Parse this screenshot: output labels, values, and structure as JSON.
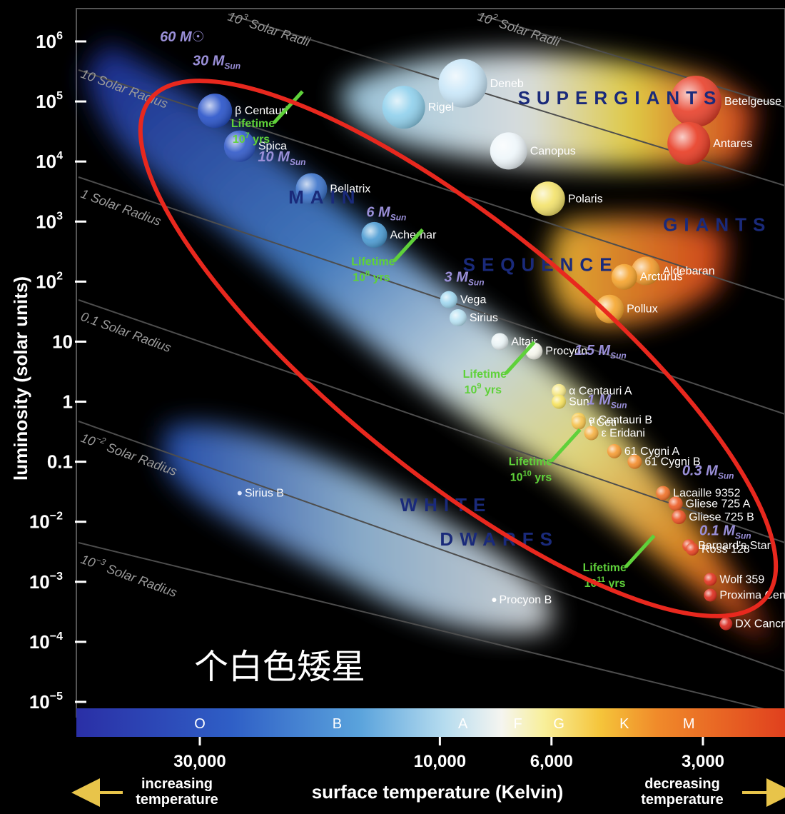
{
  "chart_data": {
    "type": "scatter",
    "xlabel": "surface temperature (Kelvin)",
    "ylabel": "luminosity (solar units)",
    "x_note_left": "increasing temperature",
    "x_note_right": "decreasing temperature",
    "x_scale": "log, reversed",
    "y_scale": "log",
    "xlim": [
      40000,
      2400
    ],
    "ylim": [
      6e-06,
      1500000
    ],
    "x_ticks": [
      {
        "value": 30000,
        "label": "30,000"
      },
      {
        "value": 10000,
        "label": "10,000"
      },
      {
        "value": 6000,
        "label": "6,000"
      },
      {
        "value": 3000,
        "label": "3,000"
      }
    ],
    "y_ticks": [
      {
        "value": 1000000,
        "base": "10",
        "exp": "6"
      },
      {
        "value": 100000,
        "base": "10",
        "exp": "5"
      },
      {
        "value": 10000,
        "base": "10",
        "exp": "4"
      },
      {
        "value": 1000,
        "base": "10",
        "exp": "3"
      },
      {
        "value": 100,
        "base": "10",
        "exp": "2"
      },
      {
        "value": 10,
        "base": "10",
        "exp": ""
      },
      {
        "value": 1,
        "base": "1",
        "exp": ""
      },
      {
        "value": 0.1,
        "base": "0.1",
        "exp": ""
      },
      {
        "value": 0.01,
        "base": "10",
        "exp": "−2"
      },
      {
        "value": 0.001,
        "base": "10",
        "exp": "−3"
      },
      {
        "value": 0.0001,
        "base": "10",
        "exp": "−4"
      },
      {
        "value": 1e-05,
        "base": "10",
        "exp": "−5"
      }
    ],
    "spectral_classes": [
      {
        "label": "O",
        "temp": 30000
      },
      {
        "label": "B",
        "temp": 16000
      },
      {
        "label": "A",
        "temp": 9000
      },
      {
        "label": "F",
        "temp": 7000
      },
      {
        "label": "G",
        "temp": 5800
      },
      {
        "label": "K",
        "temp": 4300
      },
      {
        "label": "M",
        "temp": 3200
      }
    ],
    "regions": [
      {
        "label": "MAIN",
        "x": 20000,
        "y": 2000
      },
      {
        "label": "SEQUENCE",
        "x": 9000,
        "y": 150
      },
      {
        "label": "SUPERGIANTS",
        "x": 7000,
        "y": 90000
      },
      {
        "label": "GIANTS",
        "x": 3600,
        "y": 700
      },
      {
        "label": "WHITE",
        "x": 12000,
        "y": 0.015
      },
      {
        "label": "DWARFS",
        "x": 10000,
        "y": 0.004
      }
    ],
    "stars": [
      {
        "name": "Deneb",
        "temp": 9000,
        "lum": 200000,
        "size": 34,
        "color": "#c8e6f8"
      },
      {
        "name": "Rigel",
        "temp": 11800,
        "lum": 80000,
        "size": 30,
        "color": "#8fd0ec"
      },
      {
        "name": "Betelgeuse",
        "temp": 3100,
        "lum": 100000,
        "size": 36,
        "color": "#e8402a"
      },
      {
        "name": "Antares",
        "temp": 3200,
        "lum": 20000,
        "size": 30,
        "color": "#e83a22"
      },
      {
        "name": "Canopus",
        "temp": 7300,
        "lum": 15000,
        "size": 26,
        "color": "#eef6fa"
      },
      {
        "name": "Polaris",
        "temp": 6100,
        "lum": 2400,
        "size": 24,
        "color": "#f3e26a"
      },
      {
        "name": "Aldebaran",
        "temp": 3900,
        "lum": 150,
        "size": 20,
        "color": "#f29a2a"
      },
      {
        "name": "Arcturus",
        "temp": 4300,
        "lum": 120,
        "size": 18,
        "color": "#f5a22a"
      },
      {
        "name": "Pollux",
        "temp": 4600,
        "lum": 35,
        "size": 20,
        "color": "#f5a52c"
      },
      {
        "name": "β Centauri",
        "temp": 28000,
        "lum": 70000,
        "size": 24,
        "color": "#2752c9"
      },
      {
        "name": "Spica",
        "temp": 25000,
        "lum": 18000,
        "size": 22,
        "color": "#2f58c8"
      },
      {
        "name": "Bellatrix",
        "temp": 18000,
        "lum": 3500,
        "size": 22,
        "color": "#3a72c9"
      },
      {
        "name": "Achernar",
        "temp": 13500,
        "lum": 600,
        "size": 18,
        "color": "#4a9ad2"
      },
      {
        "name": "Vega",
        "temp": 9600,
        "lum": 50,
        "size": 12,
        "color": "#9ed6ef"
      },
      {
        "name": "Sirius",
        "temp": 9200,
        "lum": 25,
        "size": 12,
        "color": "#b7e2f3"
      },
      {
        "name": "Procyon",
        "temp": 6500,
        "lum": 7,
        "size": 12,
        "color": "#f4f4ea"
      },
      {
        "name": "Altair",
        "temp": 7600,
        "lum": 10,
        "size": 12,
        "color": "#e8f2f4"
      },
      {
        "name": "α Centauri A",
        "temp": 5800,
        "lum": 1.5,
        "size": 10,
        "color": "#f6e886"
      },
      {
        "name": "Sun",
        "temp": 5800,
        "lum": 1,
        "size": 10,
        "color": "#f6e25c"
      },
      {
        "name": "α Centauri B",
        "temp": 5300,
        "lum": 0.5,
        "size": 10,
        "color": "#f7cc4e"
      },
      {
        "name": "τ Ceti",
        "temp": 5300,
        "lum": 0.45,
        "size": 10,
        "color": "#f5c14a"
      },
      {
        "name": "ε Eridani",
        "temp": 5000,
        "lum": 0.3,
        "size": 10,
        "color": "#f5b040"
      },
      {
        "name": "61 Cygni A",
        "temp": 4500,
        "lum": 0.15,
        "size": 10,
        "color": "#f59a30"
      },
      {
        "name": "61 Cygni B",
        "temp": 4100,
        "lum": 0.1,
        "size": 10,
        "color": "#f28a28"
      },
      {
        "name": "Lacaille 9352",
        "temp": 3600,
        "lum": 0.03,
        "size": 10,
        "color": "#ee6e24"
      },
      {
        "name": "Gliese 725 A",
        "temp": 3400,
        "lum": 0.02,
        "size": 10,
        "color": "#ec5a22"
      },
      {
        "name": "Gliese 725 B",
        "temp": 3350,
        "lum": 0.012,
        "size": 10,
        "color": "#ea4e20"
      },
      {
        "name": "Barnard's Star",
        "temp": 3200,
        "lum": 0.004,
        "size": 9,
        "color": "#e84620"
      },
      {
        "name": "Ross 128",
        "temp": 3150,
        "lum": 0.0035,
        "size": 9,
        "color": "#e6401e"
      },
      {
        "name": "Wolf 359",
        "temp": 2900,
        "lum": 0.0011,
        "size": 9,
        "color": "#e2301c"
      },
      {
        "name": "Proxima Centauri",
        "temp": 2900,
        "lum": 0.0006,
        "size": 9,
        "color": "#dc2a1a"
      },
      {
        "name": "DX Cancri",
        "temp": 2700,
        "lum": 0.0002,
        "size": 9,
        "color": "#d8241a"
      },
      {
        "name": "Sirius B",
        "temp": 25000,
        "lum": 0.03,
        "size": 3,
        "color": "#dfe8ff"
      },
      {
        "name": "Procyon B",
        "temp": 7800,
        "lum": 0.0005,
        "size": 3,
        "color": "#ffffff"
      }
    ],
    "mass_labels": [
      {
        "label": "60 M☉",
        "x": 36000,
        "y": 1000000
      },
      {
        "label": "30 M",
        "sub": "Sun",
        "x": 31000,
        "y": 400000
      },
      {
        "label": "10 M",
        "sub": "Sun",
        "x": 23000,
        "y": 10000
      },
      {
        "label": "6 M",
        "sub": "Sun",
        "x": 14000,
        "y": 1200
      },
      {
        "label": "3 M",
        "sub": "Sun",
        "x": 9800,
        "y": 100
      },
      {
        "label": "1.5 M",
        "sub": "Sun",
        "x": 5400,
        "y": 6
      },
      {
        "label": "1 M",
        "sub": "Sun",
        "x": 5100,
        "y": 0.9
      },
      {
        "label": "0.3 M",
        "sub": "Sun",
        "x": 3300,
        "y": 0.06
      },
      {
        "label": "0.1 M",
        "sub": "Sun",
        "x": 3050,
        "y": 0.006
      }
    ],
    "lifetimes": [
      {
        "base": "10",
        "exp": "7",
        "unit": "yrs",
        "x": 26000,
        "y": 30000
      },
      {
        "base": "10",
        "exp": "8",
        "unit": "yrs",
        "x": 15000,
        "y": 150
      },
      {
        "base": "10",
        "exp": "9",
        "unit": "yrs",
        "x": 9000,
        "y": 2
      },
      {
        "base": "10",
        "exp": "10",
        "unit": "yrs",
        "x": 7300,
        "y": 0.07
      },
      {
        "base": "10",
        "exp": "11",
        "unit": "yrs",
        "x": 5200,
        "y": 0.0012
      }
    ],
    "lifetime_word": "Lifetime",
    "radius_lines": [
      {
        "label": "10",
        "exp": "3",
        "rest": " Solar Radii"
      },
      {
        "label": "10",
        "exp": "2",
        "rest": " Solar Radii"
      },
      {
        "label": "10 Solar Radius",
        "exp": "",
        "rest": ""
      },
      {
        "label": "1 Solar Radius",
        "exp": "",
        "rest": ""
      },
      {
        "label": "0.1 Solar Radius",
        "exp": "",
        "rest": ""
      },
      {
        "label": "10",
        "exp": "−2",
        "rest": " Solar Radius"
      },
      {
        "label": "10",
        "exp": "−3",
        "rest": " Solar Radius"
      }
    ],
    "annotation_text": "个白色矮星",
    "highlight_color": "#e8281e"
  }
}
